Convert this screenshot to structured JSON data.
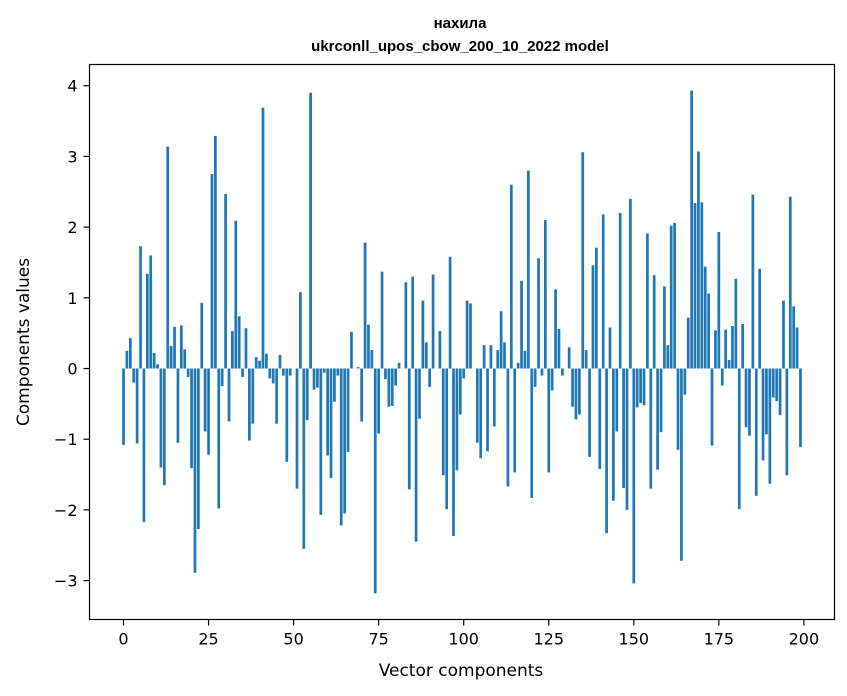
{
  "chart_data": {
    "type": "bar",
    "title_line1": "нахила",
    "title_line2": "ukrconll_upos_cbow_200_10_2022 model",
    "xlabel": "Vector components",
    "ylabel": "Components values",
    "xlim": [
      -10,
      209
    ],
    "ylim": [
      -3.55,
      4.3
    ],
    "xticks": [
      0,
      25,
      50,
      75,
      100,
      125,
      150,
      175,
      200
    ],
    "yticks": [
      -3,
      -2,
      -1,
      0,
      1,
      2,
      3,
      4
    ],
    "ytick_labels": [
      "−3",
      "−2",
      "−1",
      "0",
      "1",
      "2",
      "3",
      "4"
    ],
    "bar_color": "#1f77b4",
    "grid": false,
    "values": [
      -1.08,
      0.25,
      0.43,
      -0.2,
      -1.06,
      1.73,
      -2.17,
      1.34,
      1.6,
      0.22,
      0.06,
      -1.4,
      -1.65,
      3.14,
      0.32,
      0.59,
      -1.05,
      0.61,
      0.27,
      -0.12,
      -1.41,
      -2.89,
      -2.27,
      0.93,
      -0.89,
      -1.22,
      2.75,
      3.29,
      -1.98,
      -0.25,
      2.47,
      -0.75,
      0.53,
      2.09,
      0.74,
      -0.12,
      0.57,
      -1.02,
      -0.78,
      0.16,
      0.11,
      3.69,
      0.21,
      -0.14,
      -0.21,
      -0.78,
      0.19,
      -0.1,
      -1.32,
      -0.1,
      0.0,
      -1.7,
      1.08,
      -2.55,
      -0.73,
      3.9,
      -0.3,
      -0.27,
      -2.07,
      -0.06,
      -1.23,
      -1.55,
      -0.47,
      -0.1,
      -2.22,
      -2.05,
      -1.18,
      0.52,
      0.0,
      0.02,
      -0.75,
      1.78,
      0.62,
      0.26,
      -3.18,
      -0.92,
      1.37,
      -0.15,
      -0.54,
      -0.53,
      -0.24,
      0.08,
      0.0,
      1.22,
      -1.71,
      1.3,
      -2.45,
      -0.71,
      0.96,
      0.37,
      -0.26,
      1.33,
      0.0,
      0.53,
      -1.51,
      -1.99,
      1.58,
      -2.37,
      -1.44,
      -0.65,
      -0.14,
      0.96,
      0.92,
      0.0,
      -1.05,
      -1.27,
      0.33,
      -1.17,
      0.33,
      -0.82,
      0.26,
      0.81,
      0.37,
      -1.67,
      2.6,
      -1.47,
      0.08,
      1.24,
      0.25,
      2.8,
      -1.83,
      -0.26,
      1.56,
      -0.1,
      2.1,
      -1.47,
      -0.31,
      1.12,
      0.56,
      -0.1,
      0.0,
      0.3,
      -0.54,
      -0.72,
      -0.65,
      3.06,
      0.26,
      -1.25,
      1.46,
      1.71,
      -1.42,
      2.18,
      -2.33,
      0.58,
      -1.87,
      -0.89,
      2.2,
      -1.69,
      -2.0,
      2.4,
      -3.04,
      -0.55,
      -0.49,
      -0.52,
      1.91,
      -1.7,
      1.32,
      -1.43,
      -0.9,
      1.16,
      0.33,
      2.02,
      2.06,
      -1.15,
      -2.72,
      -0.37,
      0.72,
      3.93,
      2.34,
      3.07,
      2.35,
      1.44,
      1.06,
      -1.09,
      0.54,
      1.93,
      -0.24,
      0.55,
      0.12,
      0.6,
      1.27,
      -1.99,
      0.63,
      -0.83,
      -0.95,
      2.46,
      -1.8,
      1.41,
      -1.3,
      -0.93,
      -1.63,
      -0.41,
      -0.46,
      -0.66,
      0.96,
      -1.51,
      2.43,
      0.88,
      0.58,
      -1.11
    ]
  }
}
